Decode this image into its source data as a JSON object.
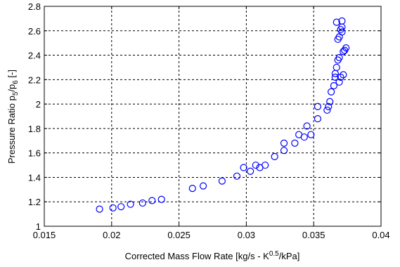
{
  "chart_data": {
    "type": "scatter",
    "title": "",
    "xlabel": "Corrected Mass Flow Rate [kg/s - K",
    "xlabel_sup": "0.5",
    "xlabel_suffix": "/kPa]",
    "ylabel_prefix": "Pressure Ratio p",
    "ylabel_sub1": "5",
    "ylabel_mid": "/p",
    "ylabel_sub2": "6",
    "ylabel_suffix": " [-]",
    "xlim": [
      0.015,
      0.04
    ],
    "ylim": [
      1.0,
      2.8
    ],
    "xticks": [
      "0.015",
      "0.02",
      "0.025",
      "0.03",
      "0.035",
      "0.04"
    ],
    "yticks": [
      "1",
      "1.2",
      "1.4",
      "1.6",
      "1.8",
      "2",
      "2.2",
      "2.4",
      "2.6",
      "2.8"
    ],
    "xtick_values": [
      0.015,
      0.02,
      0.025,
      0.03,
      0.035,
      0.04
    ],
    "ytick_values": [
      1.0,
      1.2,
      1.4,
      1.6,
      1.8,
      2.0,
      2.2,
      2.4,
      2.6,
      2.8
    ],
    "grid": true,
    "grid_style": "dashed",
    "marker": "open-circle",
    "marker_color": "#0000ff",
    "series": [
      {
        "points": [
          [
            0.0191,
            1.14
          ],
          [
            0.0201,
            1.15
          ],
          [
            0.0207,
            1.16
          ],
          [
            0.0214,
            1.18
          ],
          [
            0.0223,
            1.19
          ],
          [
            0.023,
            1.21
          ],
          [
            0.0237,
            1.22
          ],
          [
            0.026,
            1.31
          ],
          [
            0.0268,
            1.33
          ],
          [
            0.0282,
            1.37
          ],
          [
            0.0293,
            1.41
          ],
          [
            0.0298,
            1.48
          ],
          [
            0.0303,
            1.45
          ],
          [
            0.0307,
            1.5
          ],
          [
            0.031,
            1.48
          ],
          [
            0.0314,
            1.5
          ],
          [
            0.0321,
            1.57
          ],
          [
            0.0328,
            1.62
          ],
          [
            0.0328,
            1.68
          ],
          [
            0.0336,
            1.68
          ],
          [
            0.0339,
            1.75
          ],
          [
            0.0343,
            1.73
          ],
          [
            0.0345,
            1.82
          ],
          [
            0.0348,
            1.75
          ],
          [
            0.0353,
            1.88
          ],
          [
            0.0353,
            1.98
          ],
          [
            0.036,
            1.95
          ],
          [
            0.0361,
            1.98
          ],
          [
            0.0362,
            2.02
          ],
          [
            0.0363,
            2.1
          ],
          [
            0.0365,
            2.15
          ],
          [
            0.0366,
            2.22
          ],
          [
            0.0366,
            2.25
          ],
          [
            0.0367,
            2.67
          ],
          [
            0.0367,
            2.3
          ],
          [
            0.0368,
            2.36
          ],
          [
            0.0368,
            2.53
          ],
          [
            0.0369,
            2.38
          ],
          [
            0.0369,
            2.55
          ],
          [
            0.0369,
            2.18
          ],
          [
            0.037,
            2.61
          ],
          [
            0.037,
            2.22
          ],
          [
            0.0371,
            2.68
          ],
          [
            0.0371,
            2.63
          ],
          [
            0.0371,
            2.59
          ],
          [
            0.0372,
            2.43
          ],
          [
            0.0372,
            2.24
          ],
          [
            0.0373,
            2.44
          ],
          [
            0.0374,
            2.46
          ]
        ]
      }
    ]
  }
}
